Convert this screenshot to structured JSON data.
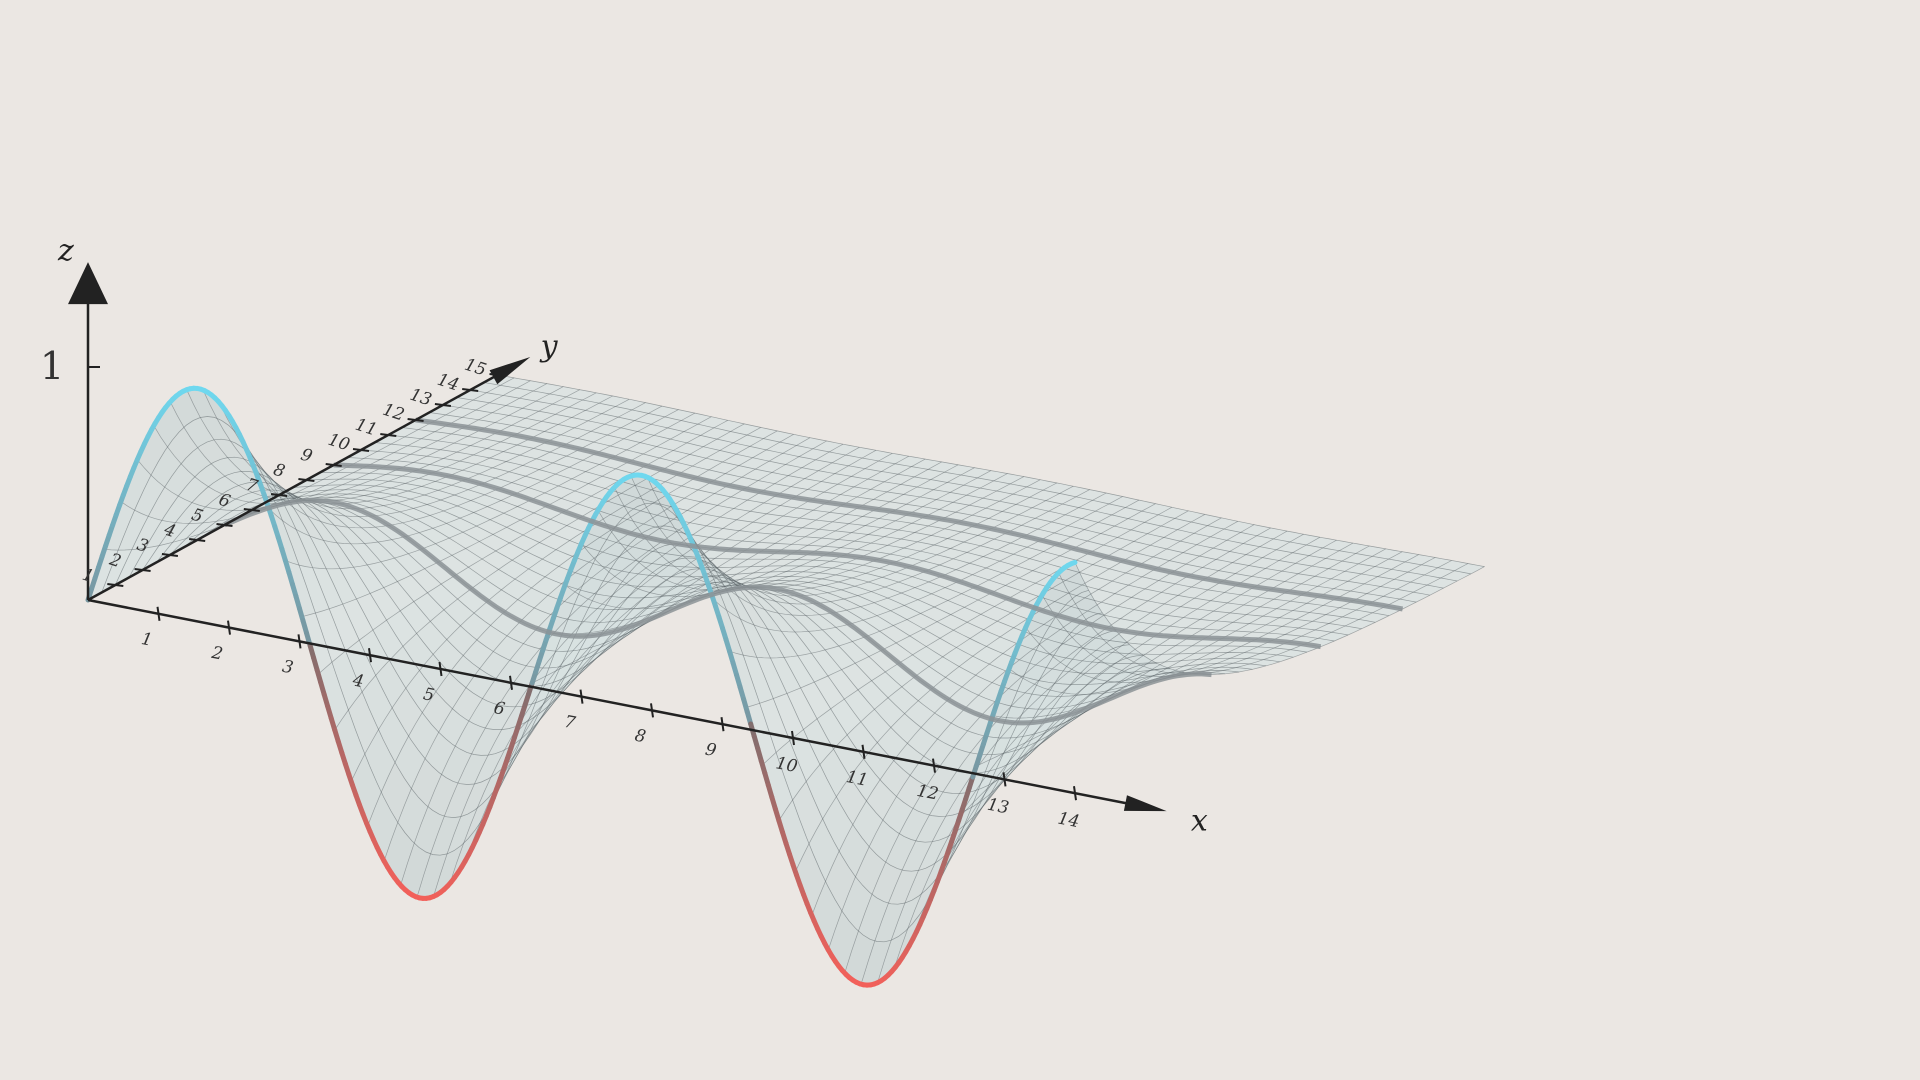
{
  "axes": {
    "x_label": "x",
    "y_label": "y",
    "z_label": "z",
    "x_ticks": [
      "1",
      "2",
      "3",
      "4",
      "5",
      "6",
      "7",
      "8",
      "9",
      "10",
      "11",
      "12",
      "13",
      "14"
    ],
    "y_ticks": [
      "1",
      "2",
      "3",
      "4",
      "5",
      "6",
      "7",
      "8",
      "9",
      "10",
      "11",
      "12",
      "13",
      "14",
      "15"
    ],
    "z_ticks": [
      "1"
    ]
  },
  "surface": {
    "description_formula": "z = sin(x) * exp(-y/3)",
    "x_range": [
      0,
      14
    ],
    "y_range": [
      0,
      15
    ],
    "grid_lines": 30
  },
  "colors": {
    "background": "#ebe7e3",
    "surface_fill": "#d9e1e1",
    "grid": "#5a6266",
    "positive": "#6fd8ef",
    "negative": "#f2605a",
    "axis": "#222222",
    "level_curve": "#8c9397"
  },
  "level_curves_y": [
    5,
    9,
    12
  ]
}
